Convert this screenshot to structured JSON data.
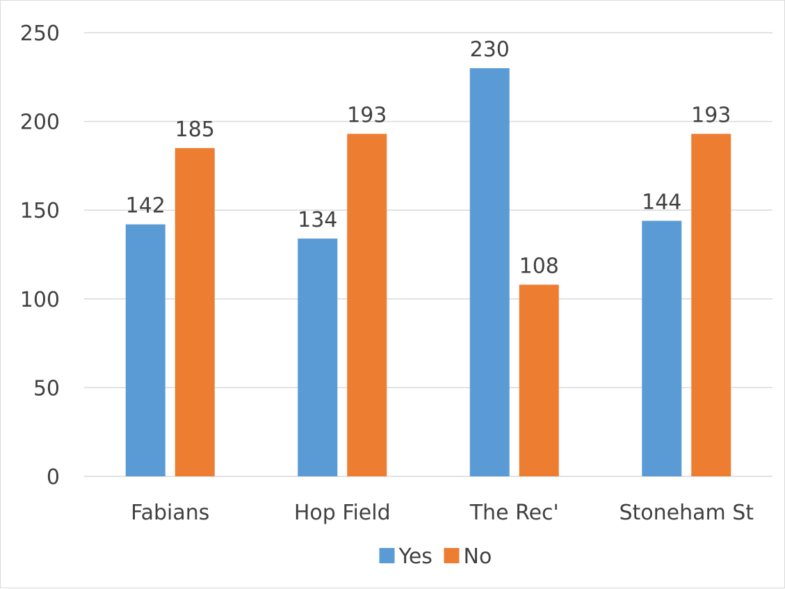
{
  "chart_data": {
    "type": "bar",
    "categories": [
      "Fabians",
      "Hop Field",
      "The Rec'",
      "Stoneham St"
    ],
    "series": [
      {
        "name": "Yes",
        "values": [
          142,
          134,
          230,
          144
        ],
        "color": "#5b9bd5"
      },
      {
        "name": "No",
        "values": [
          185,
          193,
          108,
          193
        ],
        "color": "#ed7d31"
      }
    ],
    "ylim": [
      0,
      250
    ],
    "yticks": [
      0,
      50,
      100,
      150,
      200,
      250
    ],
    "grid": true,
    "gridline_color": "#d9d9d9",
    "data_labels": true,
    "legend": "bottom-center"
  }
}
